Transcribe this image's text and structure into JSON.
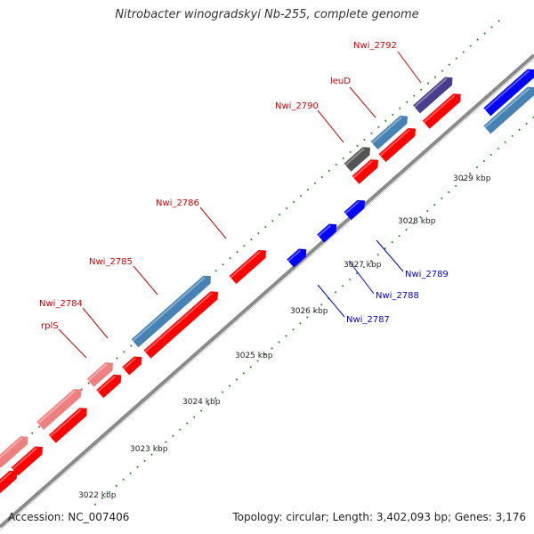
{
  "title": "Nitrobacter winogradskyi Nb-255, complete genome",
  "accession": "Accession: NC_007406",
  "topology": "Topology: circular; Length: 3,402,093 bp; Genes: 3,176",
  "colors": {
    "backbone": "#8a8a8a",
    "tick": "#1a8a1a",
    "red_label": "#cc0000",
    "blue_label": "#0000cc",
    "gene_red": "#ff0000",
    "gene_pink": "#f08080",
    "gene_steel": "#4682b4",
    "gene_gray": "#555555",
    "gene_purple": "#483d8b",
    "gene_blue": "#0000ff"
  },
  "scale_labels": [
    "3022 kbp",
    "3023 kbp",
    "3024 kbp",
    "3025 kbp",
    "3026 kbp",
    "3027 kbp",
    "3028 kbp",
    "3029 kbp"
  ],
  "gene_labels": [
    {
      "text": "Nwi_2792",
      "color": "red"
    },
    {
      "text": "leuD",
      "color": "red"
    },
    {
      "text": "Nwi_2790",
      "color": "red"
    },
    {
      "text": "Nwi_2786",
      "color": "red"
    },
    {
      "text": "Nwi_2785",
      "color": "red"
    },
    {
      "text": "Nwi_2784",
      "color": "red"
    },
    {
      "text": "rplS",
      "color": "red"
    },
    {
      "text": "Nwi_2789",
      "color": "blue"
    },
    {
      "text": "Nwi_2788",
      "color": "blue"
    },
    {
      "text": "Nwi_2787",
      "color": "blue"
    }
  ]
}
